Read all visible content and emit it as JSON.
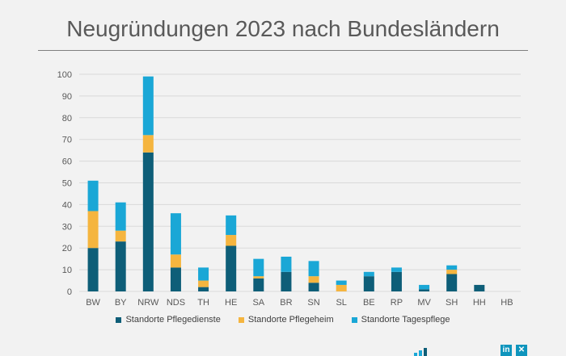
{
  "title": "Neugründungen 2023 nach Bundesländern",
  "icons": {
    "linkedin": "linkedin-icon",
    "xing": "xing-icon",
    "logo": "bar-logo-icon",
    "linkedin_glyph": "in",
    "xing_glyph": "✕"
  },
  "colors": {
    "pflegedienste": "#0e5e78",
    "pflegeheim": "#f5b53f",
    "tagespflege": "#1aa7d6",
    "grid": "#d9d9d9",
    "axis_text": "#595959"
  },
  "chart_data": {
    "type": "bar",
    "stacked": true,
    "title": "Neugründungen 2023 nach Bundesländern",
    "categories": [
      "BW",
      "BY",
      "NRW",
      "NDS",
      "TH",
      "HE",
      "SA",
      "BR",
      "SN",
      "SL",
      "BE",
      "RP",
      "MV",
      "SH",
      "HH",
      "HB"
    ],
    "series": [
      {
        "name": "Standorte Pflegedienste",
        "values": [
          20,
          23,
          64,
          11,
          2,
          21,
          6,
          9,
          4,
          0,
          7,
          9,
          1,
          8,
          3,
          0
        ]
      },
      {
        "name": "Standorte Pflegeheim",
        "values": [
          17,
          5,
          8,
          6,
          3,
          5,
          1,
          0,
          3,
          3,
          0,
          0,
          0,
          2,
          0,
          0
        ]
      },
      {
        "name": "Standorte Tagespflege",
        "values": [
          14,
          13,
          27,
          19,
          6,
          9,
          8,
          7,
          7,
          2,
          2,
          2,
          2,
          2,
          0,
          0
        ]
      }
    ],
    "ylim": [
      0,
      100
    ],
    "yticks": [
      0,
      10,
      20,
      30,
      40,
      50,
      60,
      70,
      80,
      90,
      100
    ],
    "grid": true,
    "legend_position": "bottom"
  }
}
